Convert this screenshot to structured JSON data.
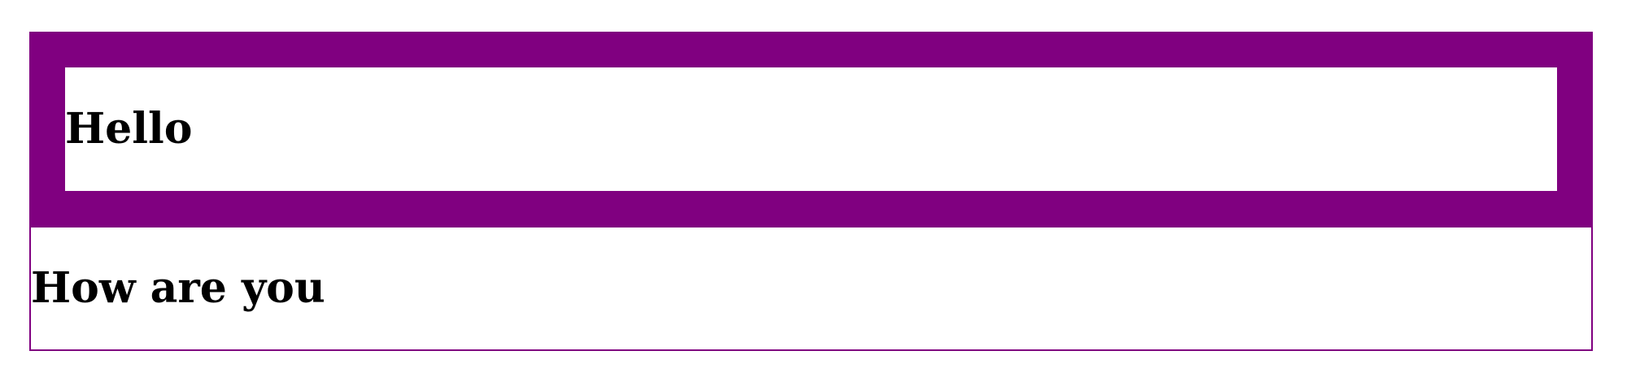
{
  "content": {
    "greeting": "Hello",
    "question": "How are you"
  },
  "colors": {
    "accent": "#800080",
    "background": "#ffffff",
    "text": "#000000"
  }
}
